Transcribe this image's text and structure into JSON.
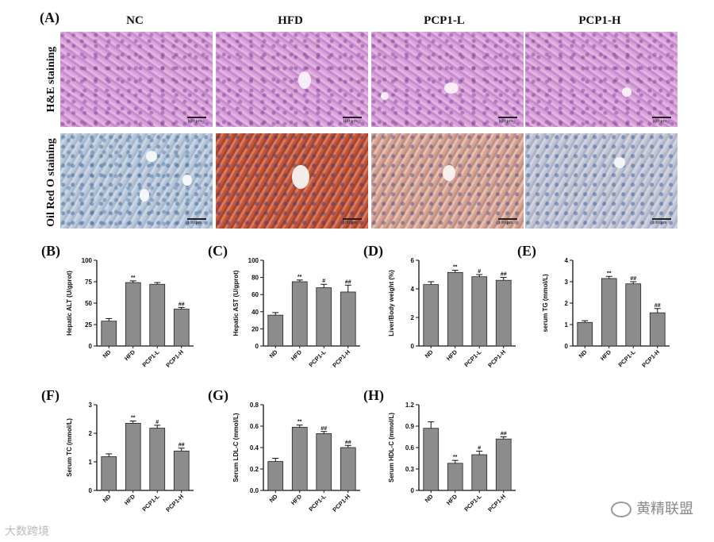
{
  "figure": {
    "panel_a_label": "(A)",
    "columns": [
      "NC",
      "HFD",
      "PCP1-L",
      "PCP1-H"
    ],
    "rows": [
      "H&E staining",
      "Oil Red O staining"
    ],
    "scale_label": "100 μm"
  },
  "watermarks": {
    "left": "大数跨境",
    "right": "黄精联盟"
  },
  "colors": {
    "bar": "#8c8c8c",
    "bar_stroke": "#222222",
    "axis": "#111111"
  },
  "chart_data": [
    {
      "panel": "(B)",
      "type": "bar",
      "ylabel": "Hepatic ALT (U/gprot)",
      "categories": [
        "ND",
        "HFD",
        "PCP1-L",
        "PCP1-H"
      ],
      "values": [
        29,
        74,
        72,
        43
      ],
      "errors": [
        3,
        2,
        2,
        2
      ],
      "sig": [
        "",
        "**",
        "",
        "##"
      ],
      "ylim": [
        0,
        100
      ],
      "yticks": [
        "0",
        "25",
        "50",
        "75",
        "100"
      ]
    },
    {
      "panel": "(C)",
      "type": "bar",
      "ylabel": "Hepatic AST (U/gprot)",
      "categories": [
        "ND",
        "HFD",
        "PCP1-L",
        "PCP1-H"
      ],
      "values": [
        36,
        75,
        68,
        63
      ],
      "errors": [
        3,
        2,
        4,
        8
      ],
      "sig": [
        "",
        "**",
        "#",
        "##"
      ],
      "ylim": [
        0,
        100
      ],
      "yticks": [
        "0",
        "20",
        "40",
        "60",
        "80",
        "100"
      ]
    },
    {
      "panel": "(D)",
      "type": "bar",
      "ylabel": "Liver/Body weight (%)",
      "categories": [
        "ND",
        "HFD",
        "PCP1-L",
        "PCP1-H"
      ],
      "values": [
        4.3,
        5.15,
        4.85,
        4.6
      ],
      "errors": [
        0.2,
        0.15,
        0.15,
        0.2
      ],
      "sig": [
        "",
        "**",
        "#",
        "##"
      ],
      "ylim": [
        0,
        6
      ],
      "yticks": [
        "0",
        "2",
        "4",
        "6"
      ]
    },
    {
      "panel": "(E)",
      "type": "bar",
      "ylabel": "serum TG (mmol/L)",
      "categories": [
        "ND",
        "HFD",
        "PCP1-L",
        "PCP1-H"
      ],
      "values": [
        1.1,
        3.15,
        2.9,
        1.55
      ],
      "errors": [
        0.08,
        0.1,
        0.1,
        0.2
      ],
      "sig": [
        "",
        "**",
        "##",
        "##"
      ],
      "ylim": [
        0,
        4
      ],
      "yticks": [
        "0",
        "1",
        "2",
        "3",
        "4"
      ]
    },
    {
      "panel": "(F)",
      "type": "bar",
      "ylabel": "Serum TC (mmol/L)",
      "categories": [
        "ND",
        "HFD",
        "PCP1-L",
        "PCP1-H"
      ],
      "values": [
        1.18,
        2.35,
        2.18,
        1.38
      ],
      "errors": [
        0.1,
        0.08,
        0.1,
        0.1
      ],
      "sig": [
        "",
        "**",
        "#",
        "##"
      ],
      "ylim": [
        0,
        3
      ],
      "yticks": [
        "0",
        "1",
        "2",
        "3"
      ]
    },
    {
      "panel": "(G)",
      "type": "bar",
      "ylabel": "Serum LDL-C (mmol/L)",
      "categories": [
        "ND",
        "HFD",
        "PCP1-L",
        "PCP1-H"
      ],
      "values": [
        0.27,
        0.59,
        0.53,
        0.4
      ],
      "errors": [
        0.03,
        0.02,
        0.02,
        0.02
      ],
      "sig": [
        "",
        "**",
        "##",
        "##"
      ],
      "ylim": [
        0,
        0.8
      ],
      "yticks": [
        "0.0",
        "0.2",
        "0.4",
        "0.6",
        "0.8"
      ]
    },
    {
      "panel": "(H)",
      "type": "bar",
      "ylabel": "Serum HDL-C (mmol/L)",
      "categories": [
        "ND",
        "HFD",
        "PCP1-L",
        "PCP1-H"
      ],
      "values": [
        0.87,
        0.38,
        0.5,
        0.72
      ],
      "errors": [
        0.09,
        0.04,
        0.05,
        0.03
      ],
      "sig": [
        "",
        "**",
        "#",
        "##"
      ],
      "ylim": [
        0,
        1.2
      ],
      "yticks": [
        "0",
        "0.3",
        "0.6",
        "0.9",
        "1.2"
      ]
    }
  ]
}
